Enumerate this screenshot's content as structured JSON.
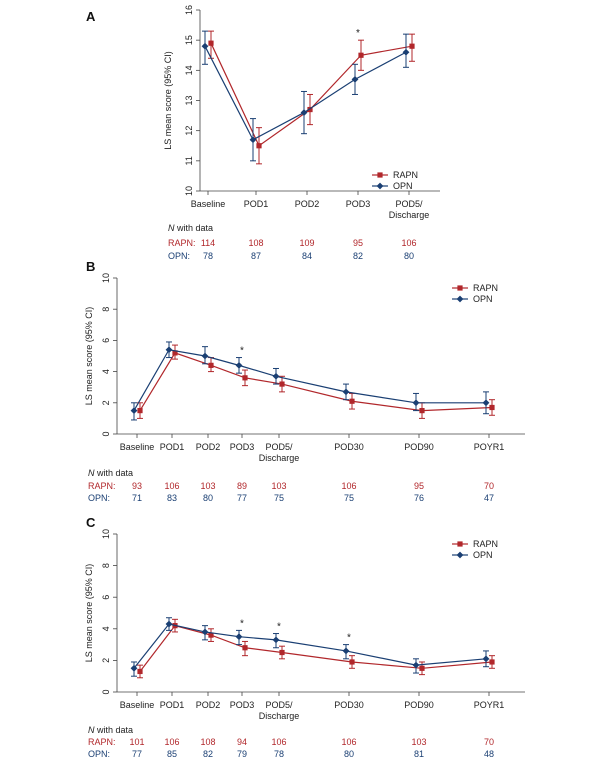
{
  "colors": {
    "rapn": "#b1272b",
    "opn": "#1a3f73",
    "axis": "#444444"
  },
  "chart_data": [
    {
      "panel": "A",
      "type": "line",
      "ylabel": "LS mean score (95% CI)",
      "ylim": [
        10,
        16
      ],
      "yticks": [
        10,
        11,
        12,
        13,
        14,
        15,
        16
      ],
      "categories": [
        "Baseline",
        "POD1",
        "POD2",
        "POD3",
        "POD5/\nDischarge"
      ],
      "series": [
        {
          "name": "RAPN",
          "values": [
            14.9,
            11.5,
            12.7,
            14.5,
            14.8
          ],
          "lower": [
            14.4,
            10.9,
            12.2,
            14.0,
            14.3
          ],
          "upper": [
            15.3,
            12.1,
            13.2,
            15.0,
            15.2
          ]
        },
        {
          "name": "OPN",
          "values": [
            14.8,
            11.7,
            12.6,
            13.7,
            14.6
          ],
          "lower": [
            14.2,
            11.0,
            11.9,
            13.2,
            14.1
          ],
          "upper": [
            15.3,
            12.4,
            13.3,
            14.2,
            15.2
          ]
        }
      ],
      "significant": [
        "POD3"
      ],
      "legend": [
        "RAPN",
        "OPN"
      ],
      "n_label_prefix": "N",
      "n_label_suffix": " with data",
      "n_rows": [
        {
          "label": "RAPN:",
          "values": [
            "114",
            "108",
            "109",
            "95",
            "106"
          ]
        },
        {
          "label": "OPN:",
          "values": [
            "78",
            "87",
            "84",
            "82",
            "80"
          ]
        }
      ]
    },
    {
      "panel": "B",
      "type": "line",
      "ylabel": "LS mean score (95% CI)",
      "ylim": [
        0,
        10
      ],
      "yticks": [
        0,
        2,
        4,
        6,
        8,
        10
      ],
      "categories": [
        "Baseline",
        "POD1",
        "POD2",
        "POD3",
        "POD5/\nDischarge",
        "POD30",
        "POD90",
        "POYR1"
      ],
      "series": [
        {
          "name": "RAPN",
          "values": [
            1.5,
            5.2,
            4.4,
            3.6,
            3.2,
            2.1,
            1.5,
            1.7
          ],
          "lower": [
            1.0,
            4.8,
            4.0,
            3.1,
            2.7,
            1.6,
            1.0,
            1.2
          ],
          "upper": [
            2.0,
            5.7,
            4.9,
            4.1,
            3.7,
            2.6,
            2.0,
            2.2
          ]
        },
        {
          "name": "OPN",
          "values": [
            1.5,
            5.4,
            5.0,
            4.4,
            3.7,
            2.7,
            2.0,
            2.0
          ],
          "lower": [
            0.9,
            4.9,
            4.5,
            3.9,
            3.2,
            2.2,
            1.5,
            1.3
          ],
          "upper": [
            2.0,
            5.9,
            5.6,
            4.9,
            4.2,
            3.2,
            2.6,
            2.7
          ]
        }
      ],
      "significant": [
        "POD3"
      ],
      "legend": [
        "RAPN",
        "OPN"
      ],
      "n_label_prefix": "N",
      "n_label_suffix": " with data",
      "n_rows": [
        {
          "label": "RAPN:",
          "values": [
            "93",
            "106",
            "103",
            "89",
            "103",
            "106",
            "95",
            "70"
          ]
        },
        {
          "label": "OPN:",
          "values": [
            "71",
            "83",
            "80",
            "77",
            "75",
            "75",
            "76",
            "47"
          ]
        }
      ]
    },
    {
      "panel": "C",
      "type": "line",
      "ylabel": "LS mean score (95% CI)",
      "ylim": [
        0,
        10
      ],
      "yticks": [
        0,
        2,
        4,
        6,
        8,
        10
      ],
      "categories": [
        "Baseline",
        "POD1",
        "POD2",
        "POD3",
        "POD5/\nDischarge",
        "POD30",
        "POD90",
        "POYR1"
      ],
      "series": [
        {
          "name": "RAPN",
          "values": [
            1.3,
            4.2,
            3.6,
            2.8,
            2.5,
            1.9,
            1.5,
            1.9
          ],
          "lower": [
            0.9,
            3.8,
            3.2,
            2.3,
            2.1,
            1.5,
            1.1,
            1.5
          ],
          "upper": [
            1.7,
            4.6,
            4.0,
            3.2,
            2.9,
            2.3,
            1.9,
            2.3
          ]
        },
        {
          "name": "OPN",
          "values": [
            1.5,
            4.3,
            3.8,
            3.5,
            3.3,
            2.6,
            1.7,
            2.1
          ],
          "lower": [
            1.0,
            3.9,
            3.3,
            3.0,
            2.8,
            2.1,
            1.2,
            1.6
          ],
          "upper": [
            1.9,
            4.7,
            4.2,
            3.9,
            3.7,
            3.0,
            2.1,
            2.6
          ]
        }
      ],
      "significant": [
        "POD3",
        "POD5/\nDischarge",
        "POD30"
      ],
      "legend": [
        "RAPN",
        "OPN"
      ],
      "n_label_prefix": "N",
      "n_label_suffix": " with data",
      "n_rows": [
        {
          "label": "RAPN:",
          "values": [
            "101",
            "106",
            "108",
            "94",
            "106",
            "106",
            "103",
            "70"
          ]
        },
        {
          "label": "OPN:",
          "values": [
            "77",
            "85",
            "82",
            "79",
            "78",
            "80",
            "81",
            "48"
          ]
        }
      ]
    }
  ]
}
